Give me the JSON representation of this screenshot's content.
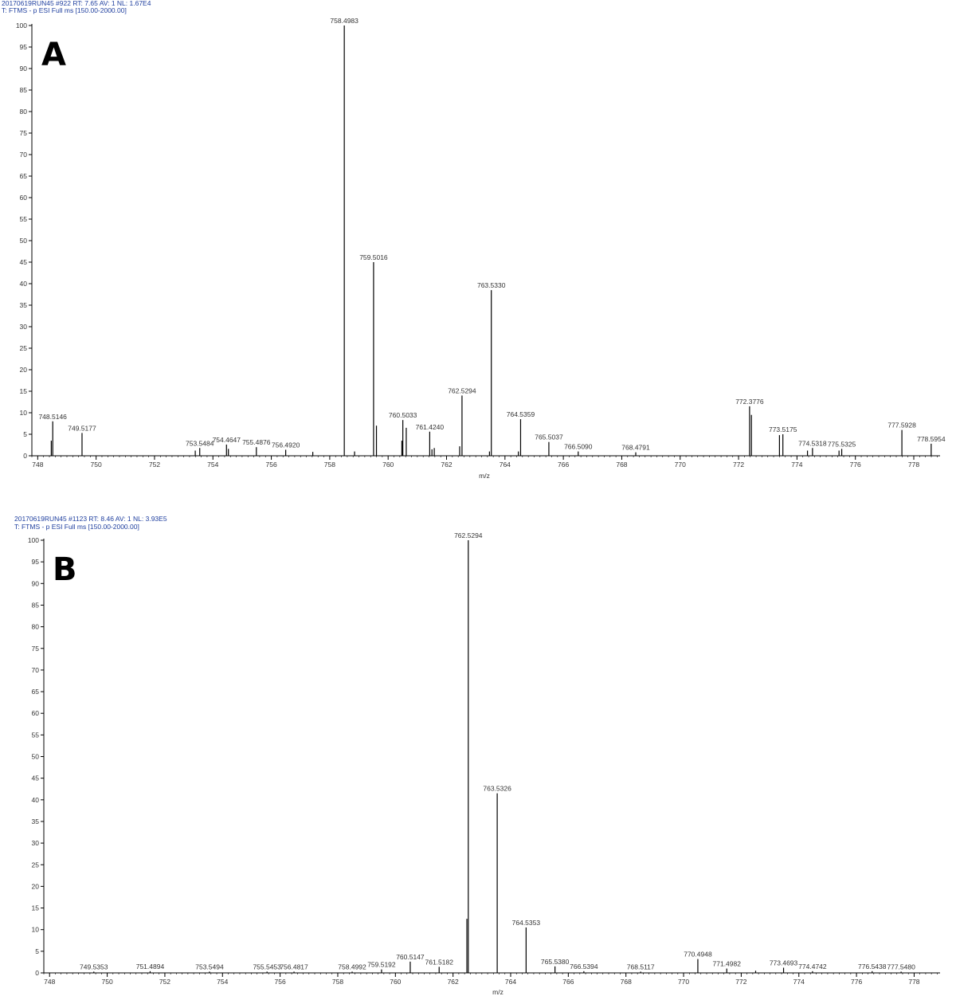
{
  "chart_data": [
    {
      "type": "bar",
      "panel_label": "A",
      "header": {
        "line1": "20170619RUN45 #922  RT: 7.65  AV: 1  NL: 1.67E4",
        "line2": "T: FTMS - p ESI Full ms [150.00-2000.00]"
      },
      "xlabel": "m/z",
      "ylabel": "",
      "xlim": [
        747.8,
        778.9
      ],
      "ylim": [
        0,
        100
      ],
      "xticks": [
        748,
        750,
        752,
        754,
        756,
        758,
        760,
        762,
        764,
        766,
        768,
        770,
        772,
        774,
        776,
        778
      ],
      "yticks": [
        0,
        5,
        10,
        15,
        20,
        25,
        30,
        35,
        40,
        45,
        50,
        55,
        60,
        65,
        70,
        75,
        80,
        85,
        90,
        95,
        100
      ],
      "grid": false,
      "peaks": [
        {
          "mz": 748.465,
          "i": 3.5
        },
        {
          "mz": 748.5146,
          "i": 8.0,
          "label": "748.5146"
        },
        {
          "mz": 749.5177,
          "i": 5.3,
          "label": "749.5177"
        },
        {
          "mz": 753.395,
          "i": 1.2
        },
        {
          "mz": 753.5484,
          "i": 1.8,
          "label": "753.5484"
        },
        {
          "mz": 754.4647,
          "i": 2.6,
          "label": "754.4647"
        },
        {
          "mz": 754.53,
          "i": 1.6
        },
        {
          "mz": 755.4876,
          "i": 2.0,
          "label": "755.4876"
        },
        {
          "mz": 756.492,
          "i": 1.4,
          "label": "756.4920"
        },
        {
          "mz": 757.42,
          "i": 0.9
        },
        {
          "mz": 758.4983,
          "i": 100,
          "label": "758.4983"
        },
        {
          "mz": 758.85,
          "i": 1.0
        },
        {
          "mz": 759.5016,
          "i": 45,
          "label": "759.5016"
        },
        {
          "mz": 759.6,
          "i": 7.0
        },
        {
          "mz": 760.47,
          "i": 3.5
        },
        {
          "mz": 760.5033,
          "i": 8.3,
          "label": "760.5033"
        },
        {
          "mz": 760.62,
          "i": 6.5
        },
        {
          "mz": 761.424,
          "i": 5.6,
          "label": "761.4240"
        },
        {
          "mz": 761.5,
          "i": 1.5
        },
        {
          "mz": 761.58,
          "i": 1.8
        },
        {
          "mz": 762.45,
          "i": 2.2
        },
        {
          "mz": 762.5294,
          "i": 14,
          "label": "762.5294"
        },
        {
          "mz": 763.47,
          "i": 1.0
        },
        {
          "mz": 763.533,
          "i": 38.5,
          "label": "763.5330"
        },
        {
          "mz": 764.46,
          "i": 1.0
        },
        {
          "mz": 764.5359,
          "i": 8.5,
          "label": "764.5359"
        },
        {
          "mz": 765.5037,
          "i": 3.2,
          "label": "765.5037"
        },
        {
          "mz": 766.509,
          "i": 1.0,
          "label": "766.5090"
        },
        {
          "mz": 768.4791,
          "i": 0.8,
          "label": "768.4791"
        },
        {
          "mz": 772.3776,
          "i": 11.5,
          "label": "772.3776"
        },
        {
          "mz": 772.44,
          "i": 9.5
        },
        {
          "mz": 773.4,
          "i": 4.8
        },
        {
          "mz": 773.5175,
          "i": 5.0,
          "label": "773.5175"
        },
        {
          "mz": 774.36,
          "i": 1.2
        },
        {
          "mz": 774.5318,
          "i": 1.8,
          "label": "774.5318"
        },
        {
          "mz": 775.44,
          "i": 1.2
        },
        {
          "mz": 775.5325,
          "i": 1.6,
          "label": "775.5325"
        },
        {
          "mz": 777.5928,
          "i": 6.0,
          "label": "777.5928"
        },
        {
          "mz": 778.5954,
          "i": 2.8,
          "label": "778.5954"
        }
      ]
    },
    {
      "type": "bar",
      "panel_label": "B",
      "header": {
        "line1": "20170619RUN45 #1123  RT: 8.46  AV: 1  NL: 3.93E5",
        "line2": "T: FTMS - p ESI Full ms [150.00-2000.00]"
      },
      "xlabel": "m/z",
      "ylabel": "",
      "xlim": [
        747.8,
        778.9
      ],
      "ylim": [
        0,
        100
      ],
      "xticks": [
        748,
        750,
        752,
        754,
        756,
        758,
        760,
        762,
        764,
        766,
        768,
        770,
        772,
        774,
        776,
        778
      ],
      "yticks": [
        0,
        5,
        10,
        15,
        20,
        25,
        30,
        35,
        40,
        45,
        50,
        55,
        60,
        65,
        70,
        75,
        80,
        85,
        90,
        95,
        100
      ],
      "grid": false,
      "peaks": [
        {
          "mz": 749.5353,
          "i": 0.3,
          "label": "749.5353"
        },
        {
          "mz": 751.4894,
          "i": 0.4,
          "label": "751.4894"
        },
        {
          "mz": 753.5494,
          "i": 0.3,
          "label": "753.5494"
        },
        {
          "mz": 755.5453,
          "i": 0.3,
          "label": "755.5453"
        },
        {
          "mz": 756.4817,
          "i": 0.3,
          "label": "756.4817"
        },
        {
          "mz": 758.4992,
          "i": 0.3,
          "label": "758.4992"
        },
        {
          "mz": 759.5192,
          "i": 0.8,
          "label": "759.5192"
        },
        {
          "mz": 760.5147,
          "i": 2.6,
          "label": "760.5147"
        },
        {
          "mz": 761.5182,
          "i": 1.4,
          "label": "761.5182"
        },
        {
          "mz": 762.48,
          "i": 12.5
        },
        {
          "mz": 762.5294,
          "i": 100,
          "label": "762.5294"
        },
        {
          "mz": 763.5326,
          "i": 41.5,
          "label": "763.5326"
        },
        {
          "mz": 764.5353,
          "i": 10.5,
          "label": "764.5353"
        },
        {
          "mz": 765.538,
          "i": 1.5,
          "label": "765.5380"
        },
        {
          "mz": 766.5394,
          "i": 0.4,
          "label": "766.5394"
        },
        {
          "mz": 768.5117,
          "i": 0.3,
          "label": "768.5117"
        },
        {
          "mz": 770.4948,
          "i": 3.2,
          "label": "770.4948"
        },
        {
          "mz": 771.4982,
          "i": 1.0,
          "label": "771.4982"
        },
        {
          "mz": 772.5,
          "i": 0.5
        },
        {
          "mz": 773.4693,
          "i": 1.2,
          "label": "773.4693"
        },
        {
          "mz": 774.4742,
          "i": 0.4,
          "label": "774.4742"
        },
        {
          "mz": 776.5438,
          "i": 0.4,
          "label": "776.5438"
        },
        {
          "mz": 777.548,
          "i": 0.3,
          "label": "777.5480"
        }
      ]
    }
  ]
}
